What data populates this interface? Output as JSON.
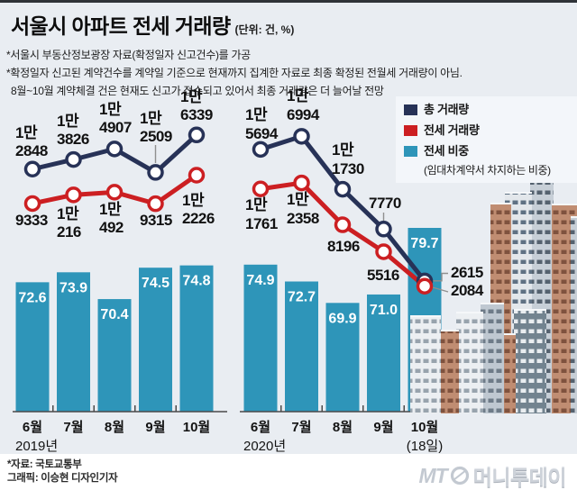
{
  "header": {
    "title": "서울시 아파트 전세 거래량",
    "unit": "(단위: 건, %)",
    "notes": [
      "*서울시 부동산정보광장 자료(확정일자 신고건수)를 가공",
      "*확정일자 신고된 계약건수를 계약일 기준으로 현재까지 집계한 자료로 최종 확정된 전월세 거래량이 아님.",
      "8월~10월 계약체결 건은 현재도 신고가 접수되고 있어서 최종 거래량은 더 늘어날 전망"
    ]
  },
  "colors": {
    "navy": "#273257",
    "red": "#CC1F22",
    "teal": "#2E95B9",
    "background": "#E9EDF2",
    "legend_bg": "#F3F6FA",
    "footer_bg": "#FFFFFF",
    "axis": "#4A4A4A",
    "label": "#121212",
    "connector": "#8F8F8F"
  },
  "legend": {
    "items": [
      {
        "label": "총 거래량",
        "color": "#273257"
      },
      {
        "label": "전세 거래량",
        "color": "#CC1F22"
      },
      {
        "label": "전세 비중",
        "sublabel": "(임대차계약서 차지하는 비중)",
        "color": "#2E95B9"
      }
    ]
  },
  "chart_data": {
    "type": "combo-line-bar",
    "title": "서울시 아파트 전세 거래량",
    "unit": "건, %",
    "legend_position": "top-right",
    "panels": [
      {
        "year_label": "2019년",
        "categories": [
          "6월",
          "7월",
          "8월",
          "9월",
          "10월"
        ],
        "series": [
          {
            "name": "총 거래량",
            "type": "line",
            "color": "#273257",
            "values": [
              12848,
              13826,
              14907,
              12509,
              16339
            ],
            "labels": [
              [
                "1만",
                "2848"
              ],
              [
                "1만",
                "3826"
              ],
              [
                "1만",
                "4907"
              ],
              [
                "1만",
                "2509"
              ],
              [
                "1만",
                "6339"
              ]
            ]
          },
          {
            "name": "전세 거래량",
            "type": "line",
            "color": "#CC1F22",
            "values": [
              9333,
              10216,
              10492,
              9315,
              12226
            ],
            "labels": [
              [
                "9333"
              ],
              [
                "1만",
                "216"
              ],
              [
                "1만",
                "492"
              ],
              [
                "9315"
              ],
              [
                "1만",
                "2226"
              ]
            ]
          },
          {
            "name": "전세 비중",
            "type": "bar",
            "color": "#2E95B9",
            "values": [
              72.6,
              73.9,
              70.4,
              74.5,
              74.8
            ]
          }
        ]
      },
      {
        "year_label": "2020년",
        "categories": [
          "6월",
          "7월",
          "8월",
          "9월",
          "10월"
        ],
        "last_category_note": "(18일)",
        "series": [
          {
            "name": "총 거래량",
            "type": "line",
            "color": "#273257",
            "values": [
              15694,
              16994,
              11730,
              7770,
              2615
            ],
            "labels": [
              [
                "1만",
                "5694"
              ],
              [
                "1만",
                "6994"
              ],
              [
                "1만",
                "1730"
              ],
              [
                "7770"
              ],
              [
                "2615"
              ]
            ]
          },
          {
            "name": "전세 거래량",
            "type": "line",
            "color": "#CC1F22",
            "values": [
              11761,
              12358,
              8196,
              5516,
              2084
            ],
            "labels": [
              [
                "1만",
                "1761"
              ],
              [
                "1만",
                "2358"
              ],
              [
                "8196"
              ],
              [
                "5516"
              ],
              [
                "2084"
              ]
            ]
          },
          {
            "name": "전세 비중",
            "type": "bar",
            "color": "#2E95B9",
            "values": [
              74.9,
              72.7,
              69.9,
              71.0,
              79.7
            ]
          }
        ]
      }
    ]
  },
  "footer": {
    "source": "*자료: 국토교통부",
    "credit": "그래픽: 이승현 디자인기자",
    "logo_mt": "MT",
    "logo_kr": "머니투데이"
  }
}
